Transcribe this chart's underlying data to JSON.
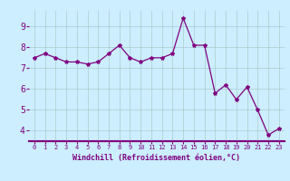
{
  "x": [
    0,
    1,
    2,
    3,
    4,
    5,
    6,
    7,
    8,
    9,
    10,
    11,
    12,
    13,
    14,
    15,
    16,
    17,
    18,
    19,
    20,
    21,
    22,
    23
  ],
  "y": [
    7.5,
    7.7,
    7.5,
    7.3,
    7.3,
    7.2,
    7.3,
    7.7,
    8.1,
    7.5,
    7.3,
    7.5,
    7.5,
    7.7,
    9.4,
    8.1,
    8.1,
    5.8,
    6.2,
    5.5,
    6.1,
    5.0,
    3.8,
    4.1
  ],
  "line_color": "#800080",
  "marker": "*",
  "marker_size": 3,
  "bg_color": "#cceeff",
  "grid_color": "#aacccc",
  "xlabel": "Windchill (Refroidissement éolien,°C)",
  "xlabel_color": "#800080",
  "tick_color": "#800080",
  "xlim": [
    -0.5,
    23.5
  ],
  "ylim": [
    3.5,
    9.75
  ],
  "yticks": [
    4,
    5,
    6,
    7,
    8,
    9
  ],
  "xticks": [
    0,
    1,
    2,
    3,
    4,
    5,
    6,
    7,
    8,
    9,
    10,
    11,
    12,
    13,
    14,
    15,
    16,
    17,
    18,
    19,
    20,
    21,
    22,
    23
  ],
  "xtick_labels": [
    "0",
    "1",
    "2",
    "3",
    "4",
    "5",
    "6",
    "7",
    "8",
    "9",
    "10",
    "11",
    "12",
    "13",
    "14",
    "15",
    "16",
    "17",
    "18",
    "19",
    "20",
    "21",
    "22",
    "23"
  ],
  "separator_color": "#800080"
}
